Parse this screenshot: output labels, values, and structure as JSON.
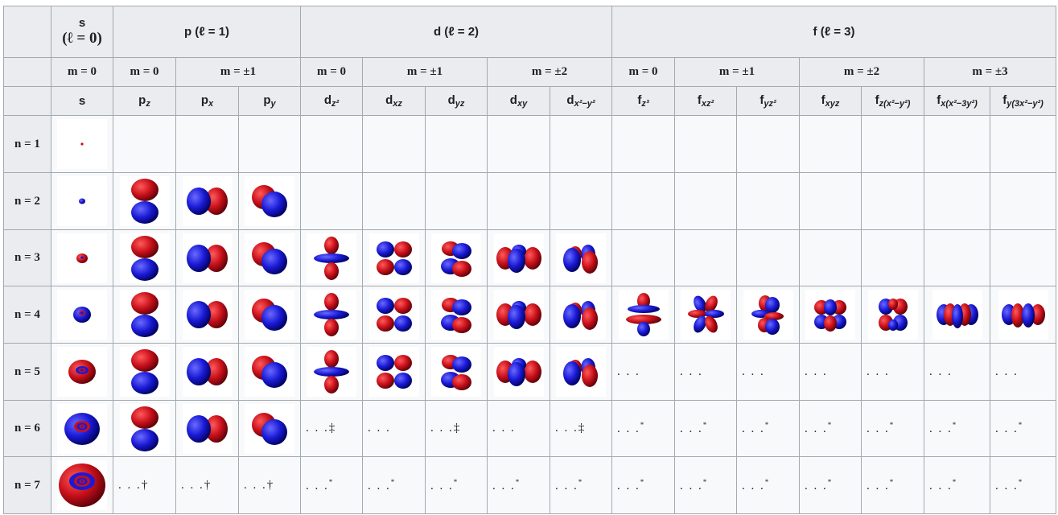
{
  "table": {
    "header_row1": {
      "s": {
        "name": "s",
        "l": "(ℓ = 0)"
      },
      "p": "p (ℓ = 1)",
      "d": "d (ℓ = 2)",
      "f": "f (ℓ = 3)"
    },
    "header_row2": [
      "m = 0",
      "m = 0",
      "m = ±1",
      "m = 0",
      "m = ±1",
      "m = ±2",
      "m = 0",
      "m = ±1",
      "m = ±2",
      "m = ±3"
    ],
    "header_row3": [
      {
        "base": "s",
        "sub": ""
      },
      {
        "base": "p",
        "sub": "z"
      },
      {
        "base": "p",
        "sub": "x"
      },
      {
        "base": "p",
        "sub": "y"
      },
      {
        "base": "d",
        "sub": "z²"
      },
      {
        "base": "d",
        "sub": "xz"
      },
      {
        "base": "d",
        "sub": "yz"
      },
      {
        "base": "d",
        "sub": "xy"
      },
      {
        "base": "d",
        "sub": "x²−y²"
      },
      {
        "base": "f",
        "sub": "z³"
      },
      {
        "base": "f",
        "sub": "xz²"
      },
      {
        "base": "f",
        "sub": "yz²"
      },
      {
        "base": "f",
        "sub": "xyz"
      },
      {
        "base": "f",
        "sub": "z(x²−y²)"
      },
      {
        "base": "f",
        "sub": "x(x²−3y²)"
      },
      {
        "base": "f",
        "sub": "y(3x²−y²)"
      }
    ],
    "rows": [
      {
        "label": "n = 1",
        "cells": [
          "img:s1",
          "",
          "",
          "",
          "",
          "",
          "",
          "",
          "",
          "",
          "",
          "",
          "",
          "",
          "",
          ""
        ]
      },
      {
        "label": "n = 2",
        "cells": [
          "img:s2",
          "img:pz",
          "img:px",
          "img:py",
          "",
          "",
          "",
          "",
          "",
          "",
          "",
          "",
          "",
          "",
          "",
          ""
        ]
      },
      {
        "label": "n = 3",
        "cells": [
          "img:s3",
          "img:pz",
          "img:px",
          "img:py",
          "img:dz2",
          "img:dxz",
          "img:dyz",
          "img:dxy",
          "img:dx2y2",
          "",
          "",
          "",
          "",
          "",
          "",
          ""
        ]
      },
      {
        "label": "n = 4",
        "cells": [
          "img:s4",
          "img:pz",
          "img:px",
          "img:py",
          "img:dz2",
          "img:dxz",
          "img:dyz",
          "img:dxy",
          "img:dx2y2",
          "img:fz3",
          "img:fxz2",
          "img:fyz2",
          "img:fxyz",
          "img:fzx2y2",
          "img:fxx23y2",
          "img:fy3x2y2"
        ]
      },
      {
        "label": "n = 5",
        "cells": [
          "img:s5",
          "img:pz",
          "img:px",
          "img:py",
          "img:dz2",
          "img:dxz",
          "img:dyz",
          "img:dxy",
          "img:dx2y2",
          "...",
          "...",
          "...",
          "...",
          "...",
          "...",
          "..."
        ]
      },
      {
        "label": "n = 6",
        "cells": [
          "img:s6",
          "img:pz",
          "img:px",
          "img:py",
          "...‡",
          "...",
          "...‡",
          "...",
          "...‡",
          "...*",
          "...*",
          "...*",
          "...*",
          "...*",
          "...*",
          "...*"
        ]
      },
      {
        "label": "n = 7",
        "cells": [
          "img:s7",
          "...†",
          "...†",
          "...†",
          "...*",
          "...*",
          "...*",
          "...*",
          "...*",
          "...*",
          "...*",
          "...*",
          "...*",
          "...*",
          "...*",
          "...*"
        ]
      }
    ]
  },
  "colors": {
    "positive_lobe": "#c8101a",
    "negative_lobe": "#1a1ad6",
    "header_bg": "#eaecf0",
    "cell_bg": "#f8f9fa",
    "border": "#a2a9b1"
  }
}
